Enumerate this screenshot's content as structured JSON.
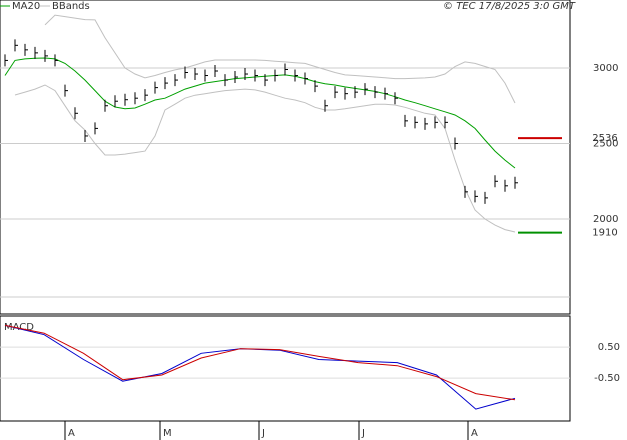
{
  "chart_data": {
    "type": "ohlc",
    "legend": [
      "MA20",
      "BBands"
    ],
    "copyright": "© TEC 17/8/2025 3:0 GMT",
    "months": [
      "A",
      "M",
      "J",
      "J",
      "A"
    ],
    "ylim": [
      1378,
      3450
    ],
    "yticks": [
      2000,
      2500,
      3000
    ],
    "close": [
      3050,
      3150,
      3120,
      3100,
      3080,
      3050,
      2850,
      2700,
      2550,
      2600,
      2750,
      2780,
      2790,
      2800,
      2820,
      2870,
      2900,
      2920,
      2970,
      2960,
      2950,
      2980,
      2920,
      2940,
      2960,
      2950,
      2920,
      2950,
      2990,
      2950,
      2930,
      2880,
      2750,
      2840,
      2830,
      2840,
      2860,
      2840,
      2830,
      2800,
      2650,
      2640,
      2630,
      2640,
      2640,
      2500,
      2180,
      2150,
      2140,
      2250,
      2220,
      2240
    ],
    "series": [
      {
        "name": "MA20",
        "color": "#00a000",
        "values": [
          2950,
          3050,
          3060,
          3065,
          3066,
          3060,
          3030,
          2980,
          2920,
          2850,
          2780,
          2742,
          2730,
          2735,
          2760,
          2788,
          2800,
          2830,
          2860,
          2880,
          2900,
          2910,
          2920,
          2930,
          2934,
          2940,
          2945,
          2950,
          2954,
          2945,
          2930,
          2910,
          2895,
          2887,
          2875,
          2865,
          2855,
          2845,
          2830,
          2810,
          2788,
          2770,
          2750,
          2730,
          2710,
          2689,
          2650,
          2600,
          2523,
          2450,
          2390,
          2338
        ]
      },
      {
        "name": "BBands",
        "color": "#c0c0c0",
        "values": [
          null,
          null,
          null,
          null,
          3285,
          3350,
          3340,
          3330,
          3320,
          3318,
          3200,
          3100,
          3000,
          2960,
          2934,
          2950,
          2970,
          2987,
          3000,
          3020,
          3040,
          3053,
          3053,
          3053,
          3053,
          3053,
          3050,
          3045,
          3040,
          3035,
          3030,
          3010,
          2990,
          2970,
          2954,
          2950,
          2945,
          2940,
          2935,
          2930,
          2930,
          2932,
          2934,
          2940,
          2960,
          3010,
          3040,
          3030,
          3010,
          2990,
          2900,
          2768
        ]
      },
      {
        "name": "BBands",
        "color": "#c0c0c0",
        "values": [
          null,
          2821,
          2840,
          2860,
          2887,
          2850,
          2750,
          2650,
          2589,
          2500,
          2424,
          2424,
          2430,
          2440,
          2450,
          2550,
          2722,
          2760,
          2800,
          2820,
          2830,
          2840,
          2850,
          2855,
          2860,
          2855,
          2840,
          2820,
          2800,
          2788,
          2770,
          2740,
          2722,
          2722,
          2730,
          2740,
          2750,
          2760,
          2760,
          2755,
          2740,
          2720,
          2700,
          2689,
          2600,
          2391,
          2200,
          2060,
          2000,
          1960,
          1930,
          1914
        ]
      }
    ],
    "levels": [
      {
        "value": 2536,
        "color": "#cc0000"
      },
      {
        "value": 1910,
        "color": "#009000"
      }
    ],
    "macd": {
      "title": "MACD",
      "ylim": [
        -1.85,
        1.44
      ],
      "yticks": [
        {
          "value": 0.5,
          "label": "0.50"
        },
        {
          "value": -0.5,
          "label": "-0.50"
        }
      ],
      "series": [
        {
          "color": "#0000cc",
          "values": [
            1.2,
            0.9,
            0.1,
            -0.6,
            -0.35,
            0.3,
            0.45,
            0.4,
            0.1,
            0.05,
            0.0,
            -0.4,
            -1.5,
            -1.15
          ]
        },
        {
          "color": "#cc0000",
          "values": [
            1.2,
            0.95,
            0.3,
            -0.55,
            -0.4,
            0.15,
            0.45,
            0.42,
            0.2,
            0.0,
            -0.1,
            -0.45,
            -1.0,
            -1.2
          ]
        }
      ]
    }
  }
}
